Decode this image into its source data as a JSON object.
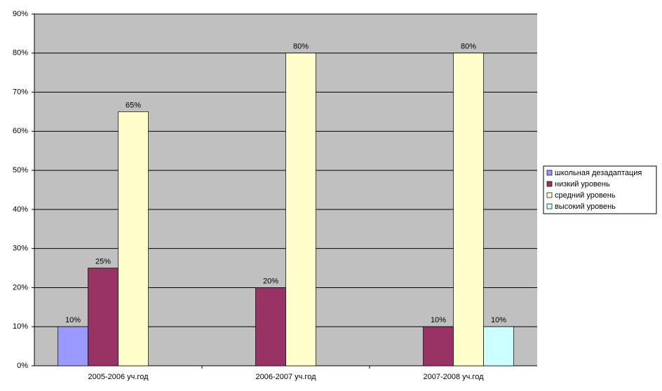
{
  "chart_data": {
    "type": "bar",
    "categories": [
      "2005-2006 уч.год",
      "2006-2007 уч.год",
      "2007-2008 уч.год"
    ],
    "series": [
      {
        "name": "школьная дезадаптация",
        "color": "#9999ff",
        "values": [
          10,
          null,
          null
        ],
        "value_labels": [
          "10%",
          null,
          null
        ]
      },
      {
        "name": "низкий уровень",
        "color": "#993366",
        "values": [
          25,
          20,
          10
        ],
        "value_labels": [
          "25%",
          "20%",
          "10%"
        ]
      },
      {
        "name": "средний уровень",
        "color": "#ffffcc",
        "values": [
          65,
          80,
          80
        ],
        "value_labels": [
          "65%",
          "80%",
          "80%"
        ]
      },
      {
        "name": "высокий уровень",
        "color": "#ccffff",
        "values": [
          null,
          null,
          10
        ],
        "value_labels": [
          null,
          null,
          "10%"
        ]
      }
    ],
    "ylim": [
      0,
      90
    ],
    "yticks": [
      {
        "value": 0,
        "label": "0%"
      },
      {
        "value": 10,
        "label": "10%"
      },
      {
        "value": 20,
        "label": "20%"
      },
      {
        "value": 30,
        "label": "30%"
      },
      {
        "value": 40,
        "label": "40%"
      },
      {
        "value": 50,
        "label": "50%"
      },
      {
        "value": 60,
        "label": "60%"
      },
      {
        "value": 70,
        "label": "70%"
      },
      {
        "value": 80,
        "label": "80%"
      },
      {
        "value": 90,
        "label": "90%"
      }
    ],
    "grid": true,
    "legend": "right"
  }
}
